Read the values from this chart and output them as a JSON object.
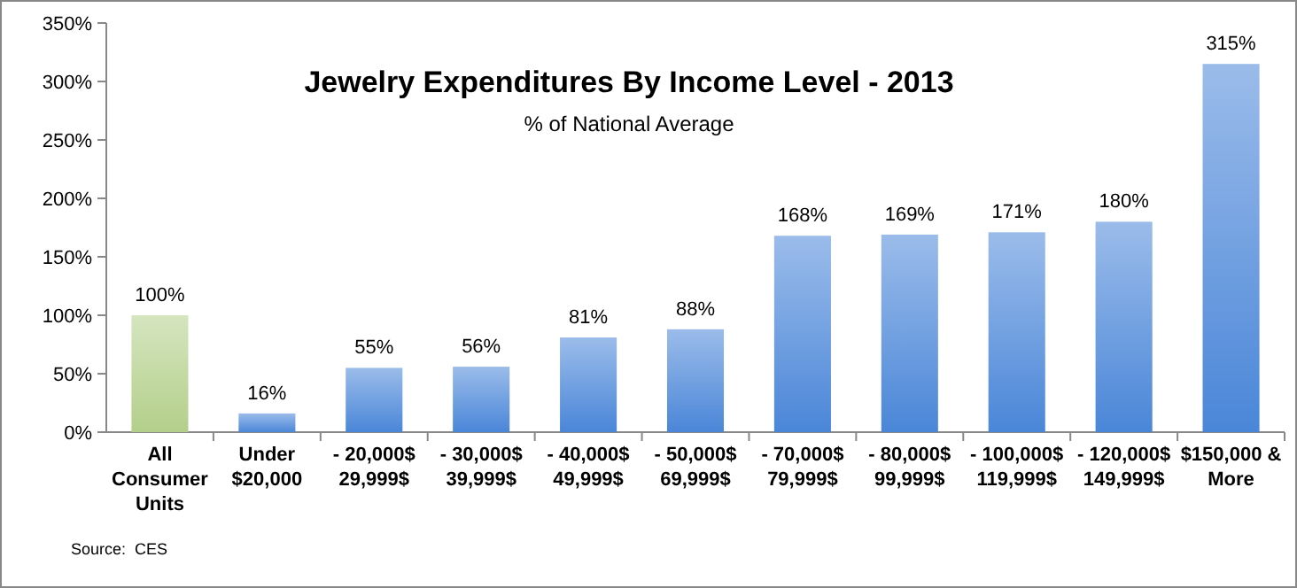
{
  "chart_data": {
    "type": "bar",
    "title": "Jewelry Expenditures By Income Level - 2013",
    "subtitle": "% of National Average",
    "categories": [
      "All\nConsumer\nUnits",
      "Under\n$20,000",
      "- 20,000$\n29,999$",
      "- 30,000$\n39,999$",
      "- 40,000$\n49,999$",
      "- 50,000$\n69,999$",
      "- 70,000$\n79,999$",
      "- 80,000$\n99,999$",
      "- 100,000$\n119,999$",
      "- 120,000$\n149,999$",
      "$150,000 &\nMore"
    ],
    "values": [
      100,
      16,
      55,
      56,
      81,
      88,
      168,
      169,
      171,
      180,
      315
    ],
    "value_labels": [
      "100%",
      "16%",
      "55%",
      "56%",
      "81%",
      "88%",
      "168%",
      "169%",
      "171%",
      "180%",
      "315%"
    ],
    "colors": [
      "#b3cf8a",
      "#4a86d8",
      "#4a86d8",
      "#4a86d8",
      "#4a86d8",
      "#4a86d8",
      "#4a86d8",
      "#4a86d8",
      "#4a86d8",
      "#4a86d8",
      "#4a86d8"
    ],
    "ylim": [
      0,
      350
    ],
    "yticks": [
      {
        "value": 0,
        "label": "0%"
      },
      {
        "value": 50,
        "label": "50%"
      },
      {
        "value": 100,
        "label": "100%"
      },
      {
        "value": 150,
        "label": "150%"
      },
      {
        "value": 200,
        "label": "200%"
      },
      {
        "value": 250,
        "label": "250%"
      },
      {
        "value": 300,
        "label": "300%"
      },
      {
        "value": 350,
        "label": "350%"
      }
    ],
    "grid": false,
    "annotations": [
      "Source:  CES"
    ]
  }
}
